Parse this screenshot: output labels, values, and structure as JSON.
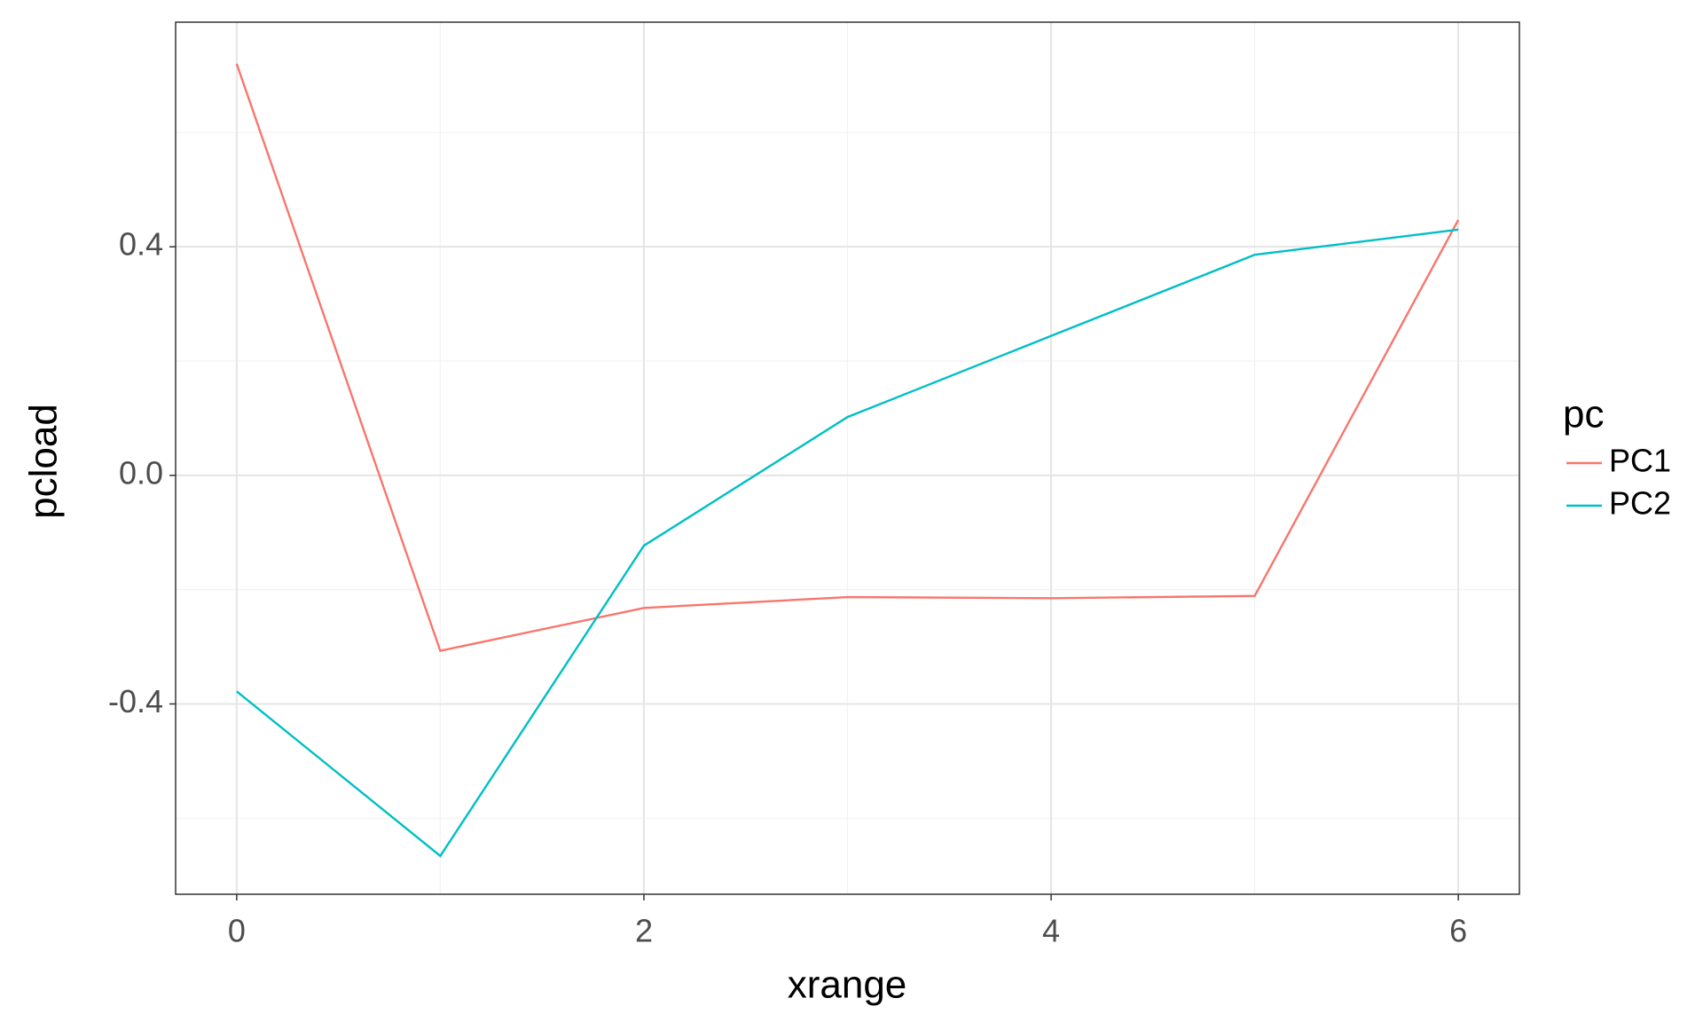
{
  "chart_data": {
    "type": "line",
    "x_label": "xrange",
    "y_label": "pcload",
    "legend_title": "pc",
    "x": [
      0,
      1,
      2,
      3,
      4,
      5,
      6
    ],
    "series": [
      {
        "name": "PC1",
        "color": "#F8766D",
        "values": [
          0.72,
          -0.307,
          -0.232,
          -0.213,
          -0.215,
          -0.211,
          0.447
        ]
      },
      {
        "name": "PC2",
        "color": "#00BFC4",
        "values": [
          -0.378,
          -0.666,
          -0.123,
          0.102,
          0.244,
          0.386,
          0.43
        ]
      }
    ],
    "xlim": [
      -0.3,
      6.3
    ],
    "xticks": [
      0,
      2,
      4,
      6
    ],
    "ylim": [
      -0.733,
      0.793
    ],
    "yticks": [
      {
        "value": -0.4,
        "label": "-0.4"
      },
      {
        "value": 0,
        "label": "0.0"
      },
      {
        "value": 0.4,
        "label": "0.4"
      }
    ],
    "grid": true,
    "minor_grid": true,
    "legend_position": "right"
  }
}
